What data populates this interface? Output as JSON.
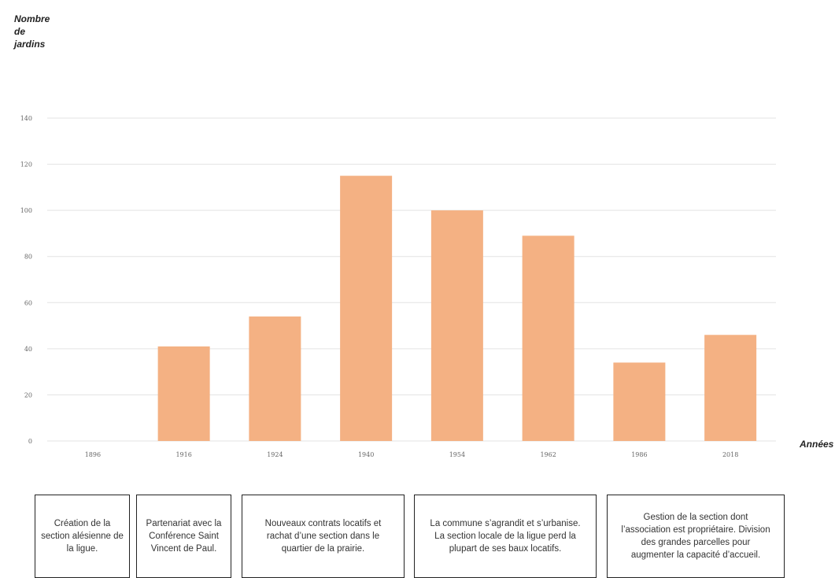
{
  "chart_data": {
    "type": "bar",
    "ylabel": "Nombre\nde\njardins",
    "xlabel": "Années",
    "categories": [
      "1896",
      "1916",
      "1924",
      "1940",
      "1954",
      "1962",
      "1986",
      "2018"
    ],
    "values": [
      0,
      41,
      54,
      115,
      100,
      89,
      34,
      46
    ],
    "ylim": [
      0,
      140
    ],
    "yticks": [
      "0",
      "20",
      "40",
      "60",
      "80",
      "100",
      "120",
      "140"
    ],
    "grid": true,
    "bar_color": "#F4B183",
    "grid_color": "#e3e3e3"
  },
  "annotations": [
    "Création de la section alésienne de la ligue.",
    "Partenariat avec la Conférence Saint Vincent de Paul.",
    "Nouveaux contrats locatifs et rachat d’une section dans le quartier de la prairie.",
    "La commune s’agrandit et s’urbanise. La section locale de la ligue perd la plupart de ses baux locatifs.",
    "Gestion de la section dont l’association est propriétaire. Division des grandes parcelles pour augmenter la capacité d’accueil."
  ]
}
